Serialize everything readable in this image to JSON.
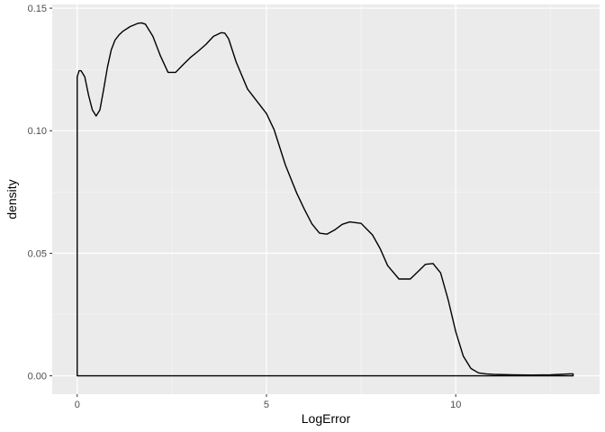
{
  "chart_data": {
    "type": "area",
    "xlabel": "LogError",
    "ylabel": "density",
    "xlim": [
      -0.66,
      13.8
    ],
    "ylim": [
      -0.0075,
      0.1515
    ],
    "x_ticks": [
      0,
      5,
      10
    ],
    "x_tick_labels": [
      "0",
      "5",
      "10"
    ],
    "y_ticks": [
      0.0,
      0.05,
      0.1,
      0.15
    ],
    "y_tick_labels": [
      "0.00",
      "0.05",
      "0.10",
      "0.15"
    ],
    "grid": true,
    "series": [
      {
        "x": [
          0.0,
          0.05,
          0.1,
          0.2,
          0.3,
          0.4,
          0.5,
          0.6,
          0.7,
          0.8,
          0.9,
          1.0,
          1.1,
          1.2,
          1.4,
          1.6,
          1.7,
          1.8,
          2.0,
          2.2,
          2.4,
          2.6,
          2.8,
          3.0,
          3.2,
          3.4,
          3.6,
          3.8,
          3.9,
          4.0,
          4.2,
          4.5,
          4.8,
          5.0,
          5.2,
          5.5,
          5.8,
          6.0,
          6.2,
          6.4,
          6.6,
          6.8,
          7.0,
          7.2,
          7.5,
          7.8,
          8.0,
          8.2,
          8.5,
          8.8,
          9.0,
          9.2,
          9.4,
          9.6,
          9.8,
          10.0,
          10.2,
          10.4,
          10.6,
          10.8,
          11.0,
          11.5,
          12.0,
          12.5,
          13.0,
          13.1
        ],
        "y": [
          0.122,
          0.1245,
          0.1245,
          0.122,
          0.1145,
          0.1085,
          0.106,
          0.1085,
          0.117,
          0.126,
          0.133,
          0.137,
          0.139,
          0.1405,
          0.1425,
          0.1438,
          0.144,
          0.1435,
          0.1385,
          0.1305,
          0.1238,
          0.1238,
          0.127,
          0.13,
          0.1325,
          0.1352,
          0.1385,
          0.14,
          0.1398,
          0.1375,
          0.128,
          0.117,
          0.111,
          0.107,
          0.1005,
          0.086,
          0.0745,
          0.068,
          0.062,
          0.0582,
          0.0578,
          0.0595,
          0.0618,
          0.0628,
          0.0622,
          0.0575,
          0.052,
          0.045,
          0.0395,
          0.0395,
          0.0425,
          0.0455,
          0.0458,
          0.042,
          0.031,
          0.018,
          0.008,
          0.003,
          0.0012,
          0.0008,
          0.0006,
          0.0004,
          0.0003,
          0.0004,
          0.0008,
          0.0008
        ]
      }
    ]
  }
}
